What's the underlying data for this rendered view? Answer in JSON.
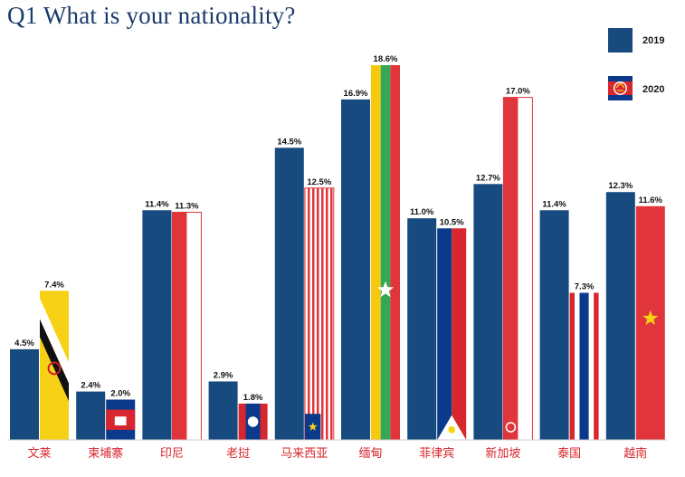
{
  "title": "Q1 What is your nationality?",
  "legend": [
    {
      "label": "2019",
      "style": "solid",
      "color": "#174a7f"
    },
    {
      "label": "2020",
      "style": "asean-flag",
      "color": "#d7262d"
    }
  ],
  "colors": {
    "navy": "#174a7f",
    "red": "#e0353b",
    "category_text": "#d7262d",
    "title": "#1a3a6b"
  },
  "chart_data": {
    "type": "bar",
    "title": "Q1 What is your nationality?",
    "categories": [
      "文莱",
      "柬埔寨",
      "印尼",
      "老挝",
      "马来西亚",
      "缅甸",
      "菲律宾",
      "新加坡",
      "泰国",
      "越南"
    ],
    "flags": [
      "brunei",
      "cambodia",
      "indonesia",
      "laos",
      "malaysia",
      "myanmar",
      "philippines",
      "singapore",
      "thailand",
      "vietnam"
    ],
    "series": [
      {
        "name": "2019",
        "values": [
          4.5,
          2.4,
          11.4,
          2.9,
          14.5,
          16.9,
          11.0,
          12.7,
          11.4,
          12.3
        ]
      },
      {
        "name": "2020",
        "values": [
          7.4,
          2.0,
          11.3,
          1.8,
          12.5,
          18.6,
          10.5,
          17.0,
          7.3,
          11.6
        ]
      }
    ],
    "value_suffix": "%",
    "ylim": [
      0,
      18.6
    ],
    "grid": false,
    "legend_position": "top-right"
  }
}
